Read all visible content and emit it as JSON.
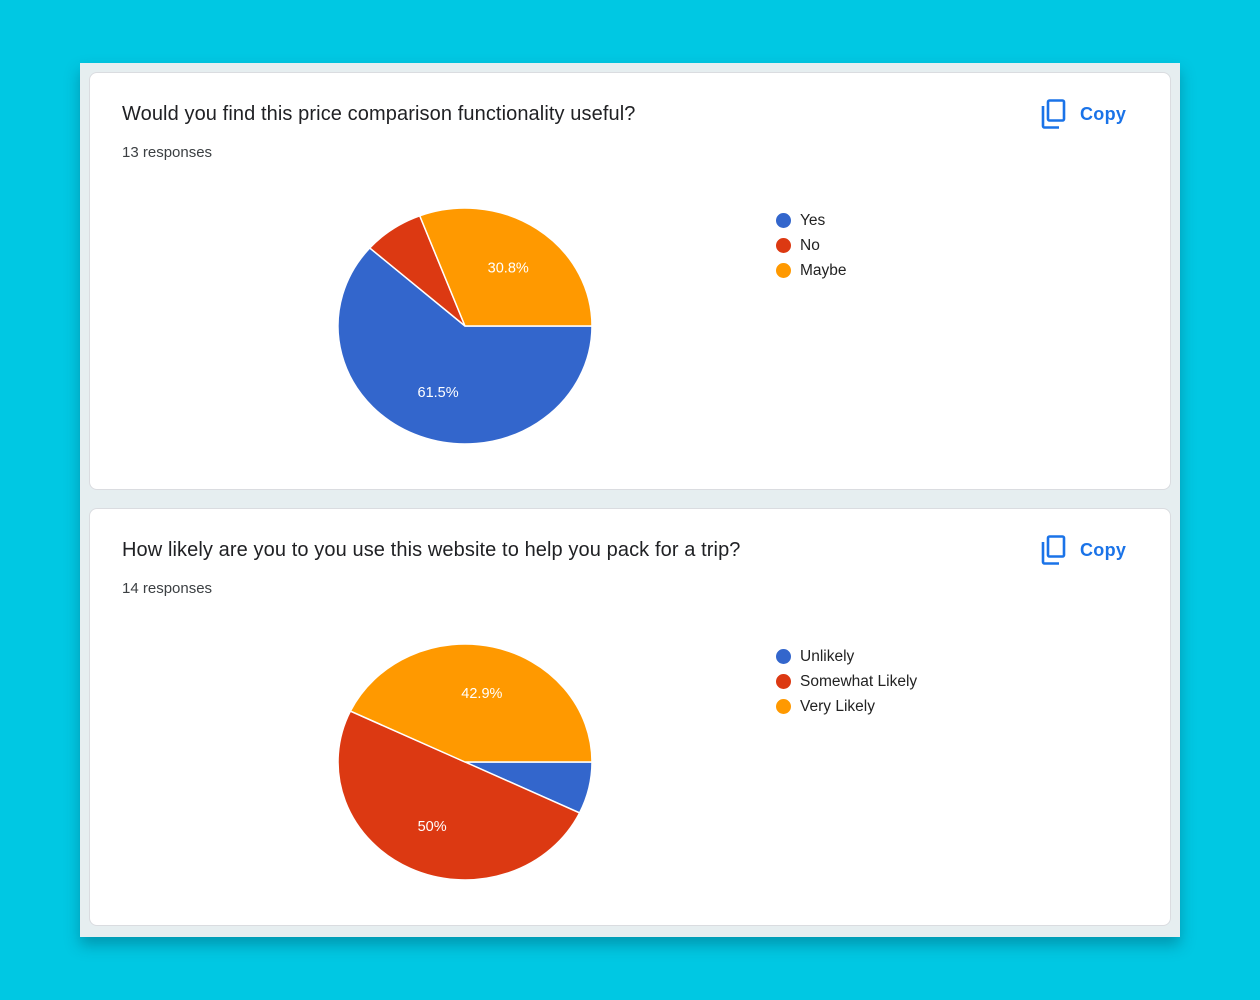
{
  "colors": {
    "background": "#00c8e3",
    "accent": "#1a73e8",
    "blue": "#3366cc",
    "red": "#dc3912",
    "orange": "#ff9900"
  },
  "cards": [
    {
      "title": "Would you find this price comparison functionality useful?",
      "responses": "13 responses",
      "copy_label": "Copy",
      "copy_icon": "copy-icon"
    },
    {
      "title": "How likely are you to you use this website to help you pack for a trip?",
      "responses": "14 responses",
      "copy_label": "Copy",
      "copy_icon": "copy-icon"
    }
  ],
  "chart_data": [
    {
      "type": "pie",
      "legend_position": "right",
      "slices": [
        {
          "label": "Yes",
          "value": 61.5,
          "color": "#3366cc",
          "data_label": "61.5%"
        },
        {
          "label": "No",
          "value": 7.7,
          "color": "#dc3912",
          "data_label": ""
        },
        {
          "label": "Maybe",
          "value": 30.8,
          "color": "#ff9900",
          "data_label": "30.8%"
        }
      ]
    },
    {
      "type": "pie",
      "legend_position": "right",
      "slices": [
        {
          "label": "Unlikely",
          "value": 7.1,
          "color": "#3366cc",
          "data_label": ""
        },
        {
          "label": "Somewhat Likely",
          "value": 50,
          "color": "#dc3912",
          "data_label": "50%"
        },
        {
          "label": "Very Likely",
          "value": 42.9,
          "color": "#ff9900",
          "data_label": "42.9%"
        }
      ]
    }
  ]
}
